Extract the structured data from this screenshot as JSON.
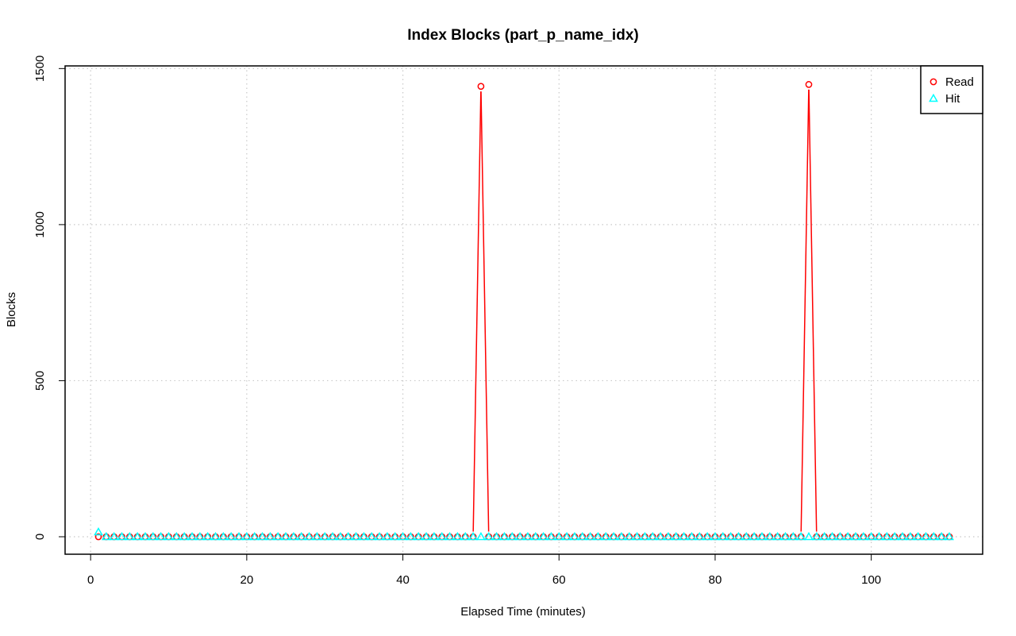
{
  "chart_data": {
    "type": "line",
    "title": "Index Blocks (part_p_name_idx)",
    "xlabel": "Elapsed Time (minutes)",
    "ylabel": "Blocks",
    "xlim": [
      1,
      110
    ],
    "ylim": [
      0,
      1450
    ],
    "x_ticks": [
      0,
      20,
      40,
      60,
      80,
      100
    ],
    "y_ticks": [
      0,
      500,
      1000,
      1500
    ],
    "grid": true,
    "legend_position": "top-right",
    "x": {
      "start": 1,
      "end": 110,
      "step": 1
    },
    "series": [
      {
        "name": "Read",
        "color": "#ff0000",
        "marker": "circle",
        "default": 0,
        "points": {
          "50": 1443,
          "92": 1449
        }
      },
      {
        "name": "Hit",
        "color": "#00ffff",
        "marker": "triangle",
        "default": 0,
        "points": {
          "1": 15
        }
      }
    ]
  }
}
